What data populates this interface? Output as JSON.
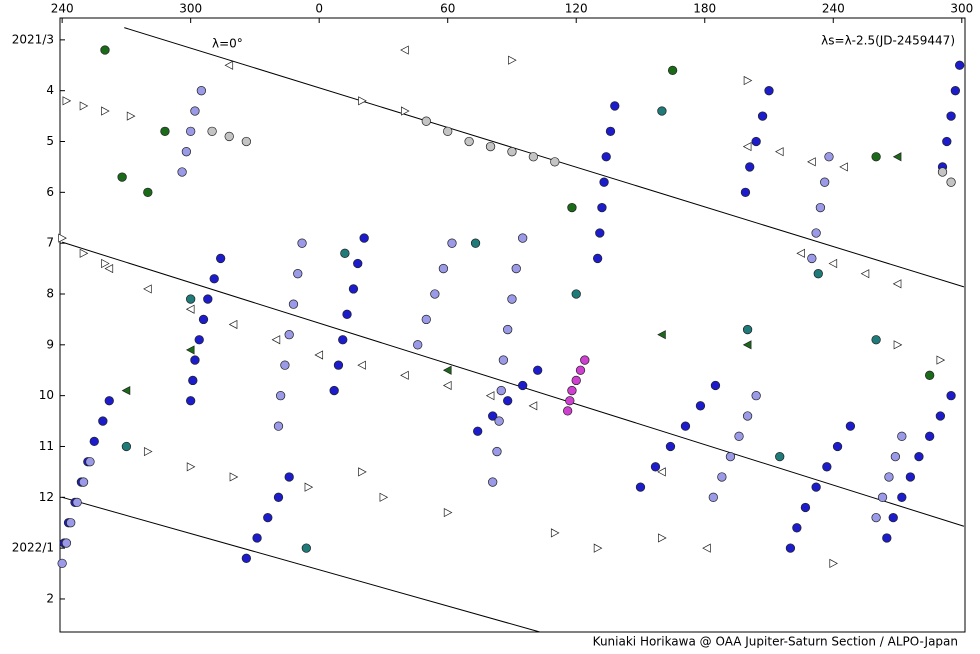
{
  "chart_data": {
    "type": "scatter",
    "annotations": [
      "λ=0°",
      "λs=λ-2.5(JD-2459447)",
      "Kuniaki Horikawa @ OAA Jupiter-Saturn Section / ALPO-Japan"
    ],
    "xlim": [
      239,
      661.5
    ],
    "xticks": [
      240,
      300,
      {
        "value": 360,
        "label": "0"
      },
      {
        "value": 420,
        "label": "60"
      },
      {
        "value": 480,
        "label": "120"
      },
      {
        "value": 540,
        "label": "180"
      },
      {
        "value": 600,
        "label": "240"
      },
      {
        "value": 660,
        "label": "300"
      }
    ],
    "ylim": [
      2.57,
      14.65
    ],
    "y_direction": "down",
    "yticks": [
      {
        "value": 3,
        "label": "2021/3"
      },
      4,
      5,
      6,
      7,
      8,
      9,
      10,
      11,
      12,
      {
        "value": 13,
        "label": "2022/1"
      },
      {
        "value": 14,
        "label": "2"
      }
    ],
    "lines": [
      {
        "color": "#000000",
        "x": [
          269,
          661
        ],
        "y": [
          2.76,
          7.86
        ]
      },
      {
        "color": "#000000",
        "x": [
          240,
          661
        ],
        "y": [
          6.98,
          12.57
        ]
      },
      {
        "color": "#000000",
        "x": [
          240,
          463
        ],
        "y": [
          12.0,
          14.65
        ]
      }
    ],
    "series": [
      {
        "marker": "circle",
        "color": "#1c1ccc",
        "x": [
          314,
          311,
          308,
          306,
          304,
          302,
          301,
          300,
          262,
          259,
          255,
          252,
          249,
          246,
          243,
          241,
          381,
          378,
          376,
          373,
          371,
          369,
          367,
          498,
          496,
          494,
          493,
          492,
          491,
          490,
          570,
          567,
          564,
          561,
          559,
          545,
          538,
          531,
          524,
          517,
          510,
          608,
          602,
          597,
          592,
          587,
          583,
          580,
          655,
          650,
          645,
          640,
          636,
          632,
          628,
          625,
          346,
          341,
          336,
          331,
          326,
          462,
          455,
          448,
          441,
          434,
          659,
          657,
          655,
          653,
          651
        ],
        "y": [
          7.3,
          7.7,
          8.1,
          8.5,
          8.9,
          9.3,
          9.7,
          10.1,
          10.1,
          10.5,
          10.9,
          11.3,
          11.7,
          12.1,
          12.5,
          12.9,
          6.9,
          7.4,
          7.9,
          8.4,
          8.9,
          9.4,
          9.9,
          4.3,
          4.8,
          5.3,
          5.8,
          6.3,
          6.8,
          7.3,
          4.0,
          4.5,
          5.0,
          5.5,
          6.0,
          9.8,
          10.2,
          10.6,
          11.0,
          11.4,
          11.8,
          10.6,
          11.0,
          11.4,
          11.8,
          12.2,
          12.6,
          13.0,
          10.0,
          10.4,
          10.8,
          11.2,
          11.6,
          12.0,
          12.4,
          12.8,
          11.6,
          12.0,
          12.4,
          12.8,
          13.2,
          9.5,
          9.8,
          10.1,
          10.4,
          10.7,
          3.5,
          4.0,
          4.5,
          5.0,
          5.5
        ]
      },
      {
        "marker": "circle",
        "color": "#9a9ae8",
        "x": [
          352,
          350,
          348,
          346,
          344,
          342,
          341,
          455,
          452,
          450,
          448,
          446,
          445,
          444,
          443,
          441,
          598,
          596,
          594,
          592,
          590,
          253,
          250,
          247,
          244,
          242,
          240,
          564,
          560,
          556,
          552,
          548,
          544,
          422,
          418,
          414,
          410,
          406,
          305,
          302,
          300,
          298,
          296,
          632,
          629,
          626,
          623,
          620
        ],
        "y": [
          7.0,
          7.6,
          8.2,
          8.8,
          9.4,
          10.0,
          10.6,
          6.9,
          7.5,
          8.1,
          8.7,
          9.3,
          9.9,
          10.5,
          11.1,
          11.7,
          5.3,
          5.8,
          6.3,
          6.8,
          7.3,
          11.3,
          11.7,
          12.1,
          12.5,
          12.9,
          13.3,
          10.0,
          10.4,
          10.8,
          11.2,
          11.6,
          12.0,
          7.0,
          7.5,
          8.0,
          8.5,
          9.0,
          4.0,
          4.4,
          4.8,
          5.2,
          5.6,
          10.8,
          11.2,
          11.6,
          12.0,
          12.4
        ]
      },
      {
        "marker": "circle",
        "color": "#c4c4c4",
        "x": [
          410,
          420,
          430,
          440,
          450,
          460,
          470,
          310,
          318,
          326,
          651,
          655
        ],
        "y": [
          4.6,
          4.8,
          5.0,
          5.1,
          5.2,
          5.3,
          5.4,
          4.8,
          4.9,
          5.0,
          5.6,
          5.8
        ]
      },
      {
        "marker": "circle",
        "color": "#1f7a7a",
        "x": [
          300,
          372,
          433,
          480,
          560,
          620,
          593,
          270,
          520,
          354,
          575
        ],
        "y": [
          8.1,
          7.2,
          7.0,
          8.0,
          8.7,
          8.9,
          7.6,
          11.0,
          4.4,
          13.0,
          11.2
        ]
      },
      {
        "marker": "circle",
        "color": "#1a6a1a",
        "x": [
          268,
          280,
          525,
          478,
          645,
          620,
          288,
          260
        ],
        "y": [
          5.7,
          6.0,
          3.6,
          6.3,
          9.6,
          5.3,
          4.8,
          3.2
        ]
      },
      {
        "marker": "circle",
        "color": "#d040d0",
        "x": [
          484,
          482,
          480,
          478,
          477,
          476
        ],
        "y": [
          9.3,
          9.5,
          9.7,
          9.9,
          10.1,
          10.3
        ]
      },
      {
        "marker": "triangle-left",
        "color": "#ffffff",
        "x": [
          262,
          280,
          300,
          320,
          340,
          360,
          380,
          400,
          420,
          440,
          460,
          560,
          575,
          590,
          605,
          585,
          600,
          615,
          630,
          318,
          400,
          541,
          520
        ],
        "y": [
          7.5,
          7.9,
          8.3,
          8.6,
          8.9,
          9.2,
          9.4,
          9.6,
          9.8,
          10.0,
          10.2,
          5.1,
          5.2,
          5.4,
          5.5,
          7.2,
          7.4,
          7.6,
          7.8,
          3.5,
          3.2,
          13.0,
          11.5
        ]
      },
      {
        "marker": "triangle-left",
        "color": "#1a6a1a",
        "x": [
          270,
          300,
          420,
          520,
          560,
          630
        ],
        "y": [
          9.9,
          9.1,
          9.5,
          8.8,
          9.0,
          5.3
        ]
      },
      {
        "marker": "triangle-right",
        "color": "#ffffff",
        "x": [
          242,
          250,
          260,
          272,
          240,
          250,
          260,
          280,
          300,
          320,
          355,
          380,
          390,
          420,
          470,
          490,
          450,
          380,
          400,
          560,
          630,
          650,
          600,
          520
        ],
        "y": [
          4.2,
          4.3,
          4.4,
          4.5,
          6.9,
          7.2,
          7.4,
          11.1,
          11.4,
          11.6,
          11.8,
          11.5,
          12.0,
          12.3,
          12.7,
          13.0,
          3.4,
          4.2,
          4.4,
          3.8,
          9.0,
          9.3,
          13.3,
          12.8
        ]
      }
    ]
  }
}
